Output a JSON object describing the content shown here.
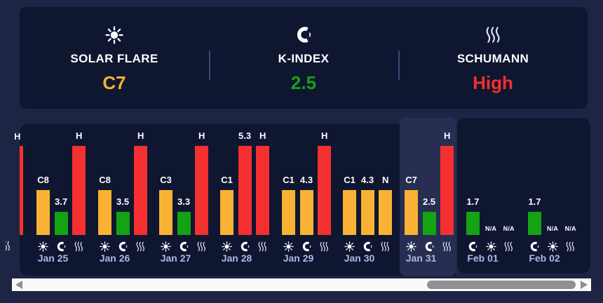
{
  "summary_cards": [
    {
      "icon": "sun-icon",
      "label": "SOLAR FLARE",
      "value": "C7",
      "value_color": "#F9B234"
    },
    {
      "icon": "magnet-icon",
      "label": "K-INDEX",
      "value": "2.5",
      "value_color": "#13A313"
    },
    {
      "icon": "waves-icon",
      "label": "SCHUMANN",
      "value": "High",
      "value_color": "#F53030"
    }
  ],
  "chart_data": {
    "type": "bar",
    "title": "",
    "legend_position": "none",
    "grid": false,
    "metrics": [
      {
        "id": "flare",
        "icon": "sun-icon"
      },
      {
        "id": "kindex",
        "icon": "magnet-icon"
      },
      {
        "id": "schumann",
        "icon": "waves-icon"
      }
    ],
    "severity_levels": {
      "high": {
        "color": "#F53030"
      },
      "moderate": {
        "color": "#F9B234"
      },
      "low": {
        "color": "#13A313"
      },
      "na": {
        "color": null
      }
    },
    "selected_day": "Jan 31",
    "days": [
      {
        "date": "Jan 25",
        "selected": false,
        "slots": [
          {
            "metric": "flare",
            "icon": "sun-icon",
            "label": "C8",
            "severity": "moderate"
          },
          {
            "metric": "kindex",
            "icon": "magnet-icon",
            "label": "3.7",
            "severity": "low"
          },
          {
            "metric": "schumann",
            "icon": "waves-icon",
            "label": "H",
            "severity": "high"
          }
        ]
      },
      {
        "date": "Jan 26",
        "selected": false,
        "slots": [
          {
            "metric": "flare",
            "icon": "sun-icon",
            "label": "C8",
            "severity": "moderate"
          },
          {
            "metric": "kindex",
            "icon": "magnet-icon",
            "label": "3.5",
            "severity": "low"
          },
          {
            "metric": "schumann",
            "icon": "waves-icon",
            "label": "H",
            "severity": "high"
          }
        ]
      },
      {
        "date": "Jan 27",
        "selected": false,
        "slots": [
          {
            "metric": "flare",
            "icon": "sun-icon",
            "label": "C3",
            "severity": "moderate"
          },
          {
            "metric": "kindex",
            "icon": "magnet-icon",
            "label": "3.3",
            "severity": "low"
          },
          {
            "metric": "schumann",
            "icon": "waves-icon",
            "label": "H",
            "severity": "high"
          }
        ]
      },
      {
        "date": "Jan 28",
        "selected": false,
        "slots": [
          {
            "metric": "flare",
            "icon": "sun-icon",
            "label": "C1",
            "severity": "moderate"
          },
          {
            "metric": "kindex",
            "icon": "magnet-icon",
            "label": "5.3",
            "severity": "high"
          },
          {
            "metric": "schumann",
            "icon": "waves-icon",
            "label": "H",
            "severity": "high"
          }
        ]
      },
      {
        "date": "Jan 29",
        "selected": false,
        "slots": [
          {
            "metric": "flare",
            "icon": "sun-icon",
            "label": "C1",
            "severity": "moderate"
          },
          {
            "metric": "kindex",
            "icon": "magnet-icon",
            "label": "4.3",
            "severity": "moderate"
          },
          {
            "metric": "schumann",
            "icon": "waves-icon",
            "label": "H",
            "severity": "high"
          }
        ]
      },
      {
        "date": "Jan 30",
        "selected": false,
        "slots": [
          {
            "metric": "flare",
            "icon": "sun-icon",
            "label": "C1",
            "severity": "moderate"
          },
          {
            "metric": "kindex",
            "icon": "magnet-icon",
            "label": "4.3",
            "severity": "moderate"
          },
          {
            "metric": "schumann",
            "icon": "waves-icon",
            "label": "N",
            "severity": "moderate"
          }
        ]
      },
      {
        "date": "Jan 31",
        "selected": true,
        "slots": [
          {
            "metric": "flare",
            "icon": "sun-icon",
            "label": "C7",
            "severity": "moderate"
          },
          {
            "metric": "kindex",
            "icon": "magnet-icon",
            "label": "2.5",
            "severity": "low"
          },
          {
            "metric": "schumann",
            "icon": "waves-icon",
            "label": "H",
            "severity": "high"
          }
        ]
      },
      {
        "date": "Feb 01",
        "selected": false,
        "slots": [
          {
            "metric": "kindex",
            "icon": "magnet-icon",
            "label": "1.7",
            "severity": "low"
          },
          {
            "metric": "flare",
            "icon": "sun-icon",
            "label": "N/A",
            "severity": "na"
          },
          {
            "metric": "schumann",
            "icon": "waves-icon",
            "label": "N/A",
            "severity": "na"
          }
        ]
      },
      {
        "date": "Feb 02",
        "selected": false,
        "slots": [
          {
            "metric": "kindex",
            "icon": "magnet-icon",
            "label": "1.7",
            "severity": "low"
          },
          {
            "metric": "flare",
            "icon": "sun-icon",
            "label": "N/A",
            "severity": "na"
          },
          {
            "metric": "schumann",
            "icon": "waves-icon",
            "label": "N/A",
            "severity": "na"
          }
        ]
      }
    ],
    "clipped_previous_day": {
      "visible_slot": {
        "metric": "schumann",
        "label": "H",
        "severity": "high",
        "icon": "waves-icon"
      }
    }
  }
}
